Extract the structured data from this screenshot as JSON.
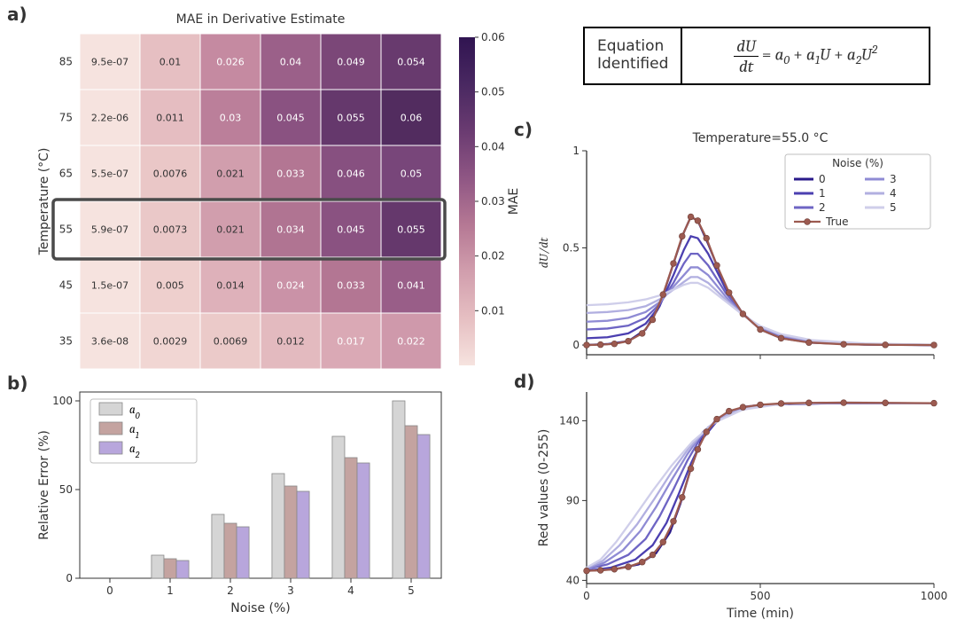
{
  "labels": {
    "a": "a)",
    "b": "b)",
    "c": "c)",
    "d": "d)",
    "eq_title_l1": "Equation",
    "eq_title_l2": "Identified"
  },
  "equation": {
    "lhs_num": "dU",
    "lhs_den": "dt",
    "rhs": "= a₀ + a₁U + a₂U²",
    "rhs_parts": [
      "= ",
      "a",
      "0",
      " + ",
      "a",
      "1",
      "U",
      " + ",
      "a",
      "2",
      "U",
      "2"
    ]
  },
  "heatmap": {
    "title": "MAE in Derivative Estimate",
    "xlabel_pos": null,
    "ylabel": "Temperature (°C)",
    "cbar_label": "MAE",
    "x_categories": [
      "0",
      "1",
      "2",
      "3",
      "4",
      "5"
    ],
    "y_categories": [
      "85",
      "75",
      "65",
      "55",
      "45",
      "35"
    ],
    "highlight_row_index": 3,
    "highlight_color": "#4a4a4a",
    "cbar_ticks": [
      "0.01",
      "0.02",
      "0.03",
      "0.04",
      "0.05",
      "0.06"
    ],
    "cells": [
      [
        {
          "v": "9.5e-07",
          "c": "#f6e3df",
          "t": "#333"
        },
        {
          "v": "0.01",
          "c": "#e6bfc2",
          "t": "#333"
        },
        {
          "v": "0.026",
          "c": "#c58aa1",
          "t": "#fff"
        },
        {
          "v": "0.04",
          "c": "#9b6089",
          "t": "#fff"
        },
        {
          "v": "0.049",
          "c": "#7b4778",
          "t": "#fff"
        },
        {
          "v": "0.054",
          "c": "#683a6e",
          "t": "#fff"
        }
      ],
      [
        {
          "v": "2.2e-06",
          "c": "#f6e3df",
          "t": "#333"
        },
        {
          "v": "0.011",
          "c": "#e5bdc1",
          "t": "#333"
        },
        {
          "v": "0.03",
          "c": "#bb7f9a",
          "t": "#fff"
        },
        {
          "v": "0.045",
          "c": "#8a5281",
          "t": "#fff"
        },
        {
          "v": "0.055",
          "c": "#65386c",
          "t": "#fff"
        },
        {
          "v": "0.06",
          "c": "#522c5f",
          "t": "#fff"
        }
      ],
      [
        {
          "v": "5.5e-07",
          "c": "#f6e3df",
          "t": "#333"
        },
        {
          "v": "0.0076",
          "c": "#eac7c7",
          "t": "#333"
        },
        {
          "v": "0.021",
          "c": "#d19ead",
          "t": "#333"
        },
        {
          "v": "0.033",
          "c": "#b37693",
          "t": "#fff"
        },
        {
          "v": "0.046",
          "c": "#875080",
          "t": "#fff"
        },
        {
          "v": "0.05",
          "c": "#78467a",
          "t": "#fff"
        }
      ],
      [
        {
          "v": "5.9e-07",
          "c": "#f6e3df",
          "t": "#333"
        },
        {
          "v": "0.0073",
          "c": "#eac8c8",
          "t": "#333"
        },
        {
          "v": "0.021",
          "c": "#d19ead",
          "t": "#333"
        },
        {
          "v": "0.034",
          "c": "#b07492",
          "t": "#fff"
        },
        {
          "v": "0.045",
          "c": "#8a5281",
          "t": "#fff"
        },
        {
          "v": "0.055",
          "c": "#65386c",
          "t": "#fff"
        }
      ],
      [
        {
          "v": "1.5e-07",
          "c": "#f6e3df",
          "t": "#333"
        },
        {
          "v": "0.005",
          "c": "#eecfcd",
          "t": "#333"
        },
        {
          "v": "0.014",
          "c": "#deb1ba",
          "t": "#333"
        },
        {
          "v": "0.024",
          "c": "#ca92a7",
          "t": "#fff"
        },
        {
          "v": "0.033",
          "c": "#b37693",
          "t": "#fff"
        },
        {
          "v": "0.041",
          "c": "#995e88",
          "t": "#fff"
        }
      ],
      [
        {
          "v": "3.6e-08",
          "c": "#f6e3df",
          "t": "#333"
        },
        {
          "v": "0.0029",
          "c": "#f1d6d3",
          "t": "#333"
        },
        {
          "v": "0.0069",
          "c": "#ebcac9",
          "t": "#333"
        },
        {
          "v": "0.012",
          "c": "#e3babf",
          "t": "#333"
        },
        {
          "v": "0.017",
          "c": "#daa9b5",
          "t": "#fff"
        },
        {
          "v": "0.022",
          "c": "#cf99ab",
          "t": "#fff"
        }
      ]
    ],
    "cbar_gradient": [
      "#f6e3df",
      "#e6bfc2",
      "#d19ead",
      "#b57894",
      "#8f5684",
      "#6a3b71",
      "#492861",
      "#301451"
    ]
  },
  "barchart": {
    "xlabel": "Noise (%)",
    "ylabel": "Relative Error (%)",
    "x_categories": [
      "0",
      "1",
      "2",
      "3",
      "4",
      "5"
    ],
    "y_ticks": [
      0,
      50,
      100
    ],
    "ylim": [
      0,
      105
    ],
    "legend": [
      {
        "name": "a₀",
        "color": "#d5d5d5",
        "it": "a",
        "sub": "0"
      },
      {
        "name": "a₁",
        "color": "#c4a3a0",
        "it": "a",
        "sub": "1"
      },
      {
        "name": "a₂",
        "color": "#b8a6dc",
        "it": "a",
        "sub": "2"
      }
    ],
    "bar_edge": "#888888",
    "data": {
      "a0": [
        0,
        13,
        36,
        59,
        80,
        100
      ],
      "a1": [
        0,
        11,
        31,
        52,
        68,
        86
      ],
      "a2": [
        0,
        10,
        29,
        49,
        65,
        81
      ]
    },
    "bar_group_width": 0.62
  },
  "panel_c": {
    "title": "Temperature=55.0 °C",
    "ylabel": "dU/dt",
    "xlim": [
      0,
      1000
    ],
    "ylim": [
      -0.05,
      1.0
    ],
    "yticks": [
      0.0,
      0.5,
      1.0
    ],
    "xticks": [
      0,
      500,
      1000
    ],
    "legend_title": "Noise (%)",
    "legend_items": [
      {
        "label": "0",
        "color": "#2a1a8a"
      },
      {
        "label": "1",
        "color": "#4b3fb0"
      },
      {
        "label": "2",
        "color": "#6e65c4"
      },
      {
        "label": "3",
        "color": "#8f8bd4"
      },
      {
        "label": "4",
        "color": "#b1afe0"
      },
      {
        "label": "5",
        "color": "#cfceea"
      }
    ],
    "true_color": "#9c5a50",
    "true_label": "True",
    "series": [
      {
        "color": "#2a1a8a",
        "pts": [
          [
            0,
            0.0
          ],
          [
            60,
            0.005
          ],
          [
            120,
            0.02
          ],
          [
            170,
            0.08
          ],
          [
            210,
            0.2
          ],
          [
            250,
            0.42
          ],
          [
            280,
            0.58
          ],
          [
            300,
            0.66
          ],
          [
            320,
            0.64
          ],
          [
            350,
            0.52
          ],
          [
            400,
            0.3
          ],
          [
            450,
            0.16
          ],
          [
            500,
            0.08
          ],
          [
            560,
            0.035
          ],
          [
            650,
            0.012
          ],
          [
            800,
            0.002
          ],
          [
            1000,
            0.0
          ]
        ]
      },
      {
        "color": "#4b3fb0",
        "pts": [
          [
            0,
            0.035
          ],
          [
            60,
            0.04
          ],
          [
            120,
            0.06
          ],
          [
            170,
            0.11
          ],
          [
            210,
            0.2
          ],
          [
            250,
            0.36
          ],
          [
            280,
            0.49
          ],
          [
            300,
            0.56
          ],
          [
            320,
            0.55
          ],
          [
            350,
            0.47
          ],
          [
            400,
            0.29
          ],
          [
            450,
            0.16
          ],
          [
            500,
            0.085
          ],
          [
            560,
            0.04
          ],
          [
            650,
            0.015
          ],
          [
            800,
            0.003
          ],
          [
            1000,
            0.0
          ]
        ]
      },
      {
        "color": "#6e65c4",
        "pts": [
          [
            0,
            0.08
          ],
          [
            60,
            0.085
          ],
          [
            120,
            0.1
          ],
          [
            170,
            0.14
          ],
          [
            210,
            0.21
          ],
          [
            250,
            0.32
          ],
          [
            280,
            0.42
          ],
          [
            300,
            0.47
          ],
          [
            320,
            0.47
          ],
          [
            350,
            0.41
          ],
          [
            400,
            0.27
          ],
          [
            450,
            0.16
          ],
          [
            500,
            0.09
          ],
          [
            560,
            0.045
          ],
          [
            650,
            0.017
          ],
          [
            800,
            0.004
          ],
          [
            1000,
            0.0
          ]
        ]
      },
      {
        "color": "#8f8bd4",
        "pts": [
          [
            0,
            0.12
          ],
          [
            60,
            0.125
          ],
          [
            120,
            0.14
          ],
          [
            170,
            0.17
          ],
          [
            210,
            0.22
          ],
          [
            250,
            0.3
          ],
          [
            280,
            0.36
          ],
          [
            300,
            0.4
          ],
          [
            320,
            0.4
          ],
          [
            350,
            0.36
          ],
          [
            400,
            0.25
          ],
          [
            450,
            0.155
          ],
          [
            500,
            0.092
          ],
          [
            560,
            0.048
          ],
          [
            650,
            0.02
          ],
          [
            800,
            0.005
          ],
          [
            1000,
            0.001
          ]
        ]
      },
      {
        "color": "#b1afe0",
        "pts": [
          [
            0,
            0.165
          ],
          [
            60,
            0.17
          ],
          [
            120,
            0.18
          ],
          [
            170,
            0.2
          ],
          [
            210,
            0.235
          ],
          [
            250,
            0.285
          ],
          [
            280,
            0.325
          ],
          [
            300,
            0.35
          ],
          [
            320,
            0.35
          ],
          [
            350,
            0.32
          ],
          [
            400,
            0.235
          ],
          [
            450,
            0.155
          ],
          [
            500,
            0.095
          ],
          [
            560,
            0.052
          ],
          [
            650,
            0.022
          ],
          [
            800,
            0.006
          ],
          [
            1000,
            0.001
          ]
        ]
      },
      {
        "color": "#cfceea",
        "pts": [
          [
            0,
            0.205
          ],
          [
            60,
            0.21
          ],
          [
            120,
            0.22
          ],
          [
            170,
            0.235
          ],
          [
            210,
            0.255
          ],
          [
            250,
            0.285
          ],
          [
            280,
            0.31
          ],
          [
            300,
            0.32
          ],
          [
            320,
            0.32
          ],
          [
            350,
            0.295
          ],
          [
            400,
            0.225
          ],
          [
            450,
            0.155
          ],
          [
            500,
            0.098
          ],
          [
            560,
            0.056
          ],
          [
            650,
            0.025
          ],
          [
            800,
            0.008
          ],
          [
            1000,
            0.002
          ]
        ]
      }
    ],
    "true_pts": [
      [
        0,
        0.0
      ],
      [
        40,
        0.002
      ],
      [
        80,
        0.006
      ],
      [
        120,
        0.02
      ],
      [
        160,
        0.06
      ],
      [
        190,
        0.13
      ],
      [
        220,
        0.26
      ],
      [
        250,
        0.42
      ],
      [
        275,
        0.56
      ],
      [
        300,
        0.66
      ],
      [
        320,
        0.64
      ],
      [
        345,
        0.55
      ],
      [
        375,
        0.41
      ],
      [
        410,
        0.27
      ],
      [
        450,
        0.16
      ],
      [
        500,
        0.08
      ],
      [
        560,
        0.035
      ],
      [
        640,
        0.013
      ],
      [
        740,
        0.004
      ],
      [
        860,
        0.001
      ],
      [
        1000,
        0.0
      ]
    ]
  },
  "panel_d": {
    "ylabel": "Red values (0-255)",
    "xlabel": "Time (min)",
    "xlim": [
      0,
      1000
    ],
    "ylim": [
      38,
      158
    ],
    "yticks": [
      40,
      90,
      140
    ],
    "xticks": [
      0,
      500,
      1000
    ],
    "series": [
      {
        "color": "#2a1a8a",
        "pts": [
          [
            0,
            46
          ],
          [
            80,
            47
          ],
          [
            150,
            50
          ],
          [
            200,
            57
          ],
          [
            240,
            70
          ],
          [
            270,
            88
          ],
          [
            300,
            110
          ],
          [
            330,
            128
          ],
          [
            370,
            140
          ],
          [
            430,
            147
          ],
          [
            520,
            150
          ],
          [
            700,
            151
          ],
          [
            1000,
            151
          ]
        ]
      },
      {
        "color": "#4b3fb0",
        "pts": [
          [
            0,
            46
          ],
          [
            70,
            48
          ],
          [
            140,
            53
          ],
          [
            190,
            62
          ],
          [
            230,
            76
          ],
          [
            265,
            94
          ],
          [
            300,
            113
          ],
          [
            335,
            129
          ],
          [
            380,
            141
          ],
          [
            450,
            148
          ],
          [
            550,
            150.5
          ],
          [
            750,
            151
          ],
          [
            1000,
            151
          ]
        ]
      },
      {
        "color": "#6e65c4",
        "pts": [
          [
            0,
            47
          ],
          [
            60,
            50
          ],
          [
            120,
            56
          ],
          [
            170,
            66
          ],
          [
            210,
            80
          ],
          [
            250,
            97
          ],
          [
            290,
            115
          ],
          [
            330,
            130
          ],
          [
            380,
            142
          ],
          [
            460,
            149
          ],
          [
            580,
            151
          ],
          [
            800,
            151
          ],
          [
            1000,
            151
          ]
        ]
      },
      {
        "color": "#8f8bd4",
        "pts": [
          [
            0,
            47
          ],
          [
            50,
            51
          ],
          [
            105,
            59
          ],
          [
            155,
            71
          ],
          [
            200,
            86
          ],
          [
            245,
            103
          ],
          [
            290,
            119
          ],
          [
            335,
            133
          ],
          [
            390,
            143
          ],
          [
            480,
            149.5
          ],
          [
            620,
            151
          ],
          [
            850,
            151
          ],
          [
            1000,
            151
          ]
        ]
      },
      {
        "color": "#b1afe0",
        "pts": [
          [
            0,
            48
          ],
          [
            45,
            52
          ],
          [
            95,
            62
          ],
          [
            145,
            75
          ],
          [
            195,
            91
          ],
          [
            245,
            108
          ],
          [
            295,
            123
          ],
          [
            350,
            136
          ],
          [
            415,
            145
          ],
          [
            510,
            150
          ],
          [
            670,
            151.3
          ],
          [
            900,
            151
          ],
          [
            1000,
            151
          ]
        ]
      },
      {
        "color": "#cfceea",
        "pts": [
          [
            0,
            48
          ],
          [
            40,
            53
          ],
          [
            85,
            64
          ],
          [
            135,
            79
          ],
          [
            190,
            96
          ],
          [
            245,
            112
          ],
          [
            305,
            127
          ],
          [
            370,
            139
          ],
          [
            450,
            147
          ],
          [
            560,
            150.5
          ],
          [
            740,
            151.5
          ],
          [
            940,
            151
          ],
          [
            1000,
            151
          ]
        ]
      }
    ],
    "true_color": "#9c5a50",
    "true_pts": [
      [
        0,
        46
      ],
      [
        40,
        46.3
      ],
      [
        80,
        47
      ],
      [
        120,
        48.5
      ],
      [
        160,
        51.5
      ],
      [
        190,
        56
      ],
      [
        220,
        64
      ],
      [
        250,
        77
      ],
      [
        275,
        92
      ],
      [
        300,
        110
      ],
      [
        320,
        122
      ],
      [
        345,
        133
      ],
      [
        375,
        141
      ],
      [
        410,
        146
      ],
      [
        450,
        148.5
      ],
      [
        500,
        150
      ],
      [
        560,
        150.8
      ],
      [
        640,
        151.2
      ],
      [
        740,
        151.3
      ],
      [
        860,
        151.2
      ],
      [
        1000,
        151
      ]
    ]
  }
}
